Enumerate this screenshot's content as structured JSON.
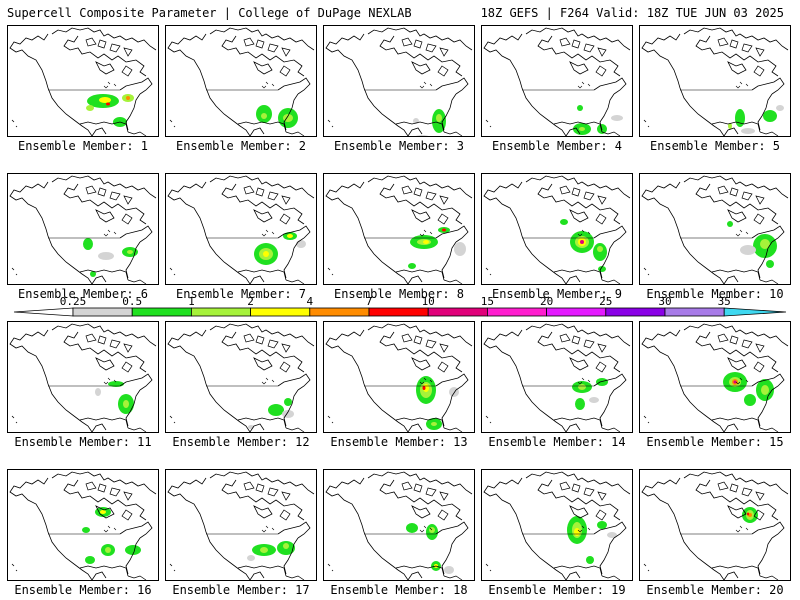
{
  "header": {
    "left": "Supercell Composite Parameter | College of DuPage NEXLAB",
    "right": "18Z GEFS | F264 Valid: 18Z TUE JUN 03 2025"
  },
  "panel_label_prefix": "Ensemble Member: ",
  "members": [
    {
      "id": "1",
      "blobs": [
        {
          "cx": 95,
          "cy": 75,
          "rx": 16,
          "ry": 7,
          "level": "0.5"
        },
        {
          "cx": 97,
          "cy": 74,
          "rx": 6,
          "ry": 3,
          "level": "2"
        },
        {
          "cx": 120,
          "cy": 72,
          "rx": 6,
          "ry": 4,
          "level": "1"
        },
        {
          "cx": 120,
          "cy": 72,
          "rx": 2,
          "ry": 2,
          "level": "4"
        },
        {
          "cx": 82,
          "cy": 82,
          "rx": 4,
          "ry": 3,
          "level": "1"
        },
        {
          "cx": 112,
          "cy": 96,
          "rx": 7,
          "ry": 5,
          "level": "0.5"
        },
        {
          "cx": 100,
          "cy": 78,
          "rx": 2,
          "ry": 1.5,
          "level": "7"
        }
      ]
    },
    {
      "id": "2",
      "blobs": [
        {
          "cx": 122,
          "cy": 92,
          "rx": 10,
          "ry": 10,
          "level": "0.5"
        },
        {
          "cx": 122,
          "cy": 92,
          "rx": 5,
          "ry": 4,
          "level": "1"
        },
        {
          "cx": 98,
          "cy": 88,
          "rx": 8,
          "ry": 9,
          "level": "0.5"
        },
        {
          "cx": 98,
          "cy": 90,
          "rx": 3,
          "ry": 3,
          "level": "1"
        },
        {
          "cx": 85,
          "cy": 122,
          "rx": 5,
          "ry": 3,
          "level": "0.25"
        }
      ]
    },
    {
      "id": "3",
      "blobs": [
        {
          "cx": 115,
          "cy": 95,
          "rx": 7,
          "ry": 12,
          "level": "0.5"
        },
        {
          "cx": 115,
          "cy": 92,
          "rx": 3,
          "ry": 4,
          "level": "1"
        },
        {
          "cx": 98,
          "cy": 115,
          "rx": 12,
          "ry": 6,
          "level": "0.25"
        },
        {
          "cx": 92,
          "cy": 95,
          "rx": 3,
          "ry": 3,
          "level": "0.25"
        }
      ]
    },
    {
      "id": "4",
      "blobs": [
        {
          "cx": 100,
          "cy": 103,
          "rx": 9,
          "ry": 6,
          "level": "0.5"
        },
        {
          "cx": 100,
          "cy": 103,
          "rx": 3,
          "ry": 2,
          "level": "1"
        },
        {
          "cx": 120,
          "cy": 103,
          "rx": 5,
          "ry": 5,
          "level": "0.5"
        },
        {
          "cx": 135,
          "cy": 92,
          "rx": 6,
          "ry": 3,
          "level": "0.25"
        },
        {
          "cx": 98,
          "cy": 82,
          "rx": 3,
          "ry": 3,
          "level": "0.5"
        }
      ]
    },
    {
      "id": "5",
      "blobs": [
        {
          "cx": 100,
          "cy": 92,
          "rx": 5,
          "ry": 9,
          "level": "0.5"
        },
        {
          "cx": 130,
          "cy": 90,
          "rx": 7,
          "ry": 6,
          "level": "0.5"
        },
        {
          "cx": 90,
          "cy": 100,
          "rx": 2,
          "ry": 3,
          "level": "1"
        },
        {
          "cx": 108,
          "cy": 105,
          "rx": 7,
          "ry": 3,
          "level": "0.25"
        },
        {
          "cx": 140,
          "cy": 82,
          "rx": 4,
          "ry": 3,
          "level": "0.25"
        }
      ]
    },
    {
      "id": "6",
      "blobs": [
        {
          "cx": 80,
          "cy": 70,
          "rx": 5,
          "ry": 6,
          "level": "0.5"
        },
        {
          "cx": 122,
          "cy": 78,
          "rx": 8,
          "ry": 5,
          "level": "0.5"
        },
        {
          "cx": 122,
          "cy": 78,
          "rx": 3,
          "ry": 2,
          "level": "1"
        },
        {
          "cx": 98,
          "cy": 82,
          "rx": 8,
          "ry": 4,
          "level": "0.25"
        },
        {
          "cx": 85,
          "cy": 100,
          "rx": 3,
          "ry": 3,
          "level": "0.5"
        }
      ]
    },
    {
      "id": "7",
      "blobs": [
        {
          "cx": 100,
          "cy": 80,
          "rx": 12,
          "ry": 11,
          "level": "0.5"
        },
        {
          "cx": 100,
          "cy": 80,
          "rx": 7,
          "ry": 6,
          "level": "1"
        },
        {
          "cx": 100,
          "cy": 80,
          "rx": 3,
          "ry": 3,
          "level": "2"
        },
        {
          "cx": 124,
          "cy": 62,
          "rx": 7,
          "ry": 4,
          "level": "0.5"
        },
        {
          "cx": 124,
          "cy": 62,
          "rx": 3,
          "ry": 2,
          "level": "2"
        },
        {
          "cx": 135,
          "cy": 70,
          "rx": 5,
          "ry": 4,
          "level": "0.25"
        }
      ]
    },
    {
      "id": "8",
      "blobs": [
        {
          "cx": 100,
          "cy": 68,
          "rx": 14,
          "ry": 7,
          "level": "0.5"
        },
        {
          "cx": 100,
          "cy": 68,
          "rx": 7,
          "ry": 3,
          "level": "1"
        },
        {
          "cx": 102,
          "cy": 68,
          "rx": 3,
          "ry": 2,
          "level": "2"
        },
        {
          "cx": 120,
          "cy": 56,
          "rx": 6,
          "ry": 3,
          "level": "0.5"
        },
        {
          "cx": 120,
          "cy": 56,
          "rx": 2,
          "ry": 1.5,
          "level": "7"
        },
        {
          "cx": 88,
          "cy": 92,
          "rx": 4,
          "ry": 3,
          "level": "0.5"
        },
        {
          "cx": 136,
          "cy": 75,
          "rx": 6,
          "ry": 7,
          "level": "0.25"
        }
      ]
    },
    {
      "id": "9",
      "blobs": [
        {
          "cx": 100,
          "cy": 68,
          "rx": 12,
          "ry": 11,
          "level": "0.5"
        },
        {
          "cx": 100,
          "cy": 68,
          "rx": 7,
          "ry": 6,
          "level": "1"
        },
        {
          "cx": 100,
          "cy": 68,
          "rx": 4,
          "ry": 4,
          "level": "2"
        },
        {
          "cx": 100,
          "cy": 68,
          "rx": 2,
          "ry": 2,
          "level": "10"
        },
        {
          "cx": 118,
          "cy": 78,
          "rx": 7,
          "ry": 9,
          "level": "0.5"
        },
        {
          "cx": 118,
          "cy": 75,
          "rx": 3,
          "ry": 3,
          "level": "1"
        },
        {
          "cx": 82,
          "cy": 48,
          "rx": 4,
          "ry": 3,
          "level": "0.5"
        },
        {
          "cx": 120,
          "cy": 95,
          "rx": 4,
          "ry": 3,
          "level": "0.5"
        }
      ]
    },
    {
      "id": "10",
      "blobs": [
        {
          "cx": 125,
          "cy": 72,
          "rx": 12,
          "ry": 12,
          "level": "0.5"
        },
        {
          "cx": 125,
          "cy": 70,
          "rx": 5,
          "ry": 5,
          "level": "1"
        },
        {
          "cx": 108,
          "cy": 76,
          "rx": 8,
          "ry": 5,
          "level": "0.25"
        },
        {
          "cx": 90,
          "cy": 50,
          "rx": 3,
          "ry": 3,
          "level": "0.5"
        },
        {
          "cx": 130,
          "cy": 90,
          "rx": 4,
          "ry": 4,
          "level": "0.5"
        }
      ]
    },
    {
      "id": "11",
      "blobs": [
        {
          "cx": 118,
          "cy": 82,
          "rx": 8,
          "ry": 10,
          "level": "0.5"
        },
        {
          "cx": 118,
          "cy": 82,
          "rx": 3,
          "ry": 4,
          "level": "1"
        },
        {
          "cx": 108,
          "cy": 62,
          "rx": 8,
          "ry": 3,
          "level": "0.5"
        },
        {
          "cx": 90,
          "cy": 70,
          "rx": 3,
          "ry": 4,
          "level": "0.25"
        }
      ]
    },
    {
      "id": "12",
      "blobs": [
        {
          "cx": 110,
          "cy": 88,
          "rx": 8,
          "ry": 6,
          "level": "0.5"
        },
        {
          "cx": 122,
          "cy": 80,
          "rx": 4,
          "ry": 4,
          "level": "0.5"
        },
        {
          "cx": 122,
          "cy": 92,
          "rx": 6,
          "ry": 4,
          "level": "0.25"
        },
        {
          "cx": 85,
          "cy": 105,
          "rx": 3,
          "ry": 2,
          "level": "0.25"
        }
      ]
    },
    {
      "id": "13",
      "blobs": [
        {
          "cx": 102,
          "cy": 68,
          "rx": 10,
          "ry": 14,
          "level": "0.5"
        },
        {
          "cx": 102,
          "cy": 68,
          "rx": 6,
          "ry": 8,
          "level": "1"
        },
        {
          "cx": 102,
          "cy": 66,
          "rx": 3,
          "ry": 4,
          "level": "2"
        },
        {
          "cx": 100,
          "cy": 66,
          "rx": 1.5,
          "ry": 2,
          "level": "7"
        },
        {
          "cx": 130,
          "cy": 70,
          "rx": 5,
          "ry": 5,
          "level": "0.25"
        },
        {
          "cx": 110,
          "cy": 102,
          "rx": 8,
          "ry": 6,
          "level": "0.5"
        },
        {
          "cx": 110,
          "cy": 102,
          "rx": 3,
          "ry": 2,
          "level": "1"
        }
      ]
    },
    {
      "id": "14",
      "blobs": [
        {
          "cx": 100,
          "cy": 65,
          "rx": 10,
          "ry": 6,
          "level": "0.5"
        },
        {
          "cx": 100,
          "cy": 65,
          "rx": 4,
          "ry": 3,
          "level": "1"
        },
        {
          "cx": 98,
          "cy": 82,
          "rx": 5,
          "ry": 6,
          "level": "0.5"
        },
        {
          "cx": 120,
          "cy": 60,
          "rx": 6,
          "ry": 4,
          "level": "0.5"
        },
        {
          "cx": 112,
          "cy": 78,
          "rx": 5,
          "ry": 3,
          "level": "0.25"
        }
      ]
    },
    {
      "id": "15",
      "blobs": [
        {
          "cx": 95,
          "cy": 60,
          "rx": 12,
          "ry": 10,
          "level": "0.5"
        },
        {
          "cx": 95,
          "cy": 60,
          "rx": 6,
          "ry": 5,
          "level": "1"
        },
        {
          "cx": 95,
          "cy": 60,
          "rx": 3,
          "ry": 3,
          "level": "4"
        },
        {
          "cx": 95,
          "cy": 60,
          "rx": 1.5,
          "ry": 1.5,
          "level": "10"
        },
        {
          "cx": 125,
          "cy": 68,
          "rx": 9,
          "ry": 11,
          "level": "0.5"
        },
        {
          "cx": 125,
          "cy": 68,
          "rx": 4,
          "ry": 5,
          "level": "1"
        },
        {
          "cx": 110,
          "cy": 78,
          "rx": 6,
          "ry": 6,
          "level": "0.5"
        }
      ]
    },
    {
      "id": "16",
      "blobs": [
        {
          "cx": 95,
          "cy": 42,
          "rx": 8,
          "ry": 5,
          "level": "0.5"
        },
        {
          "cx": 95,
          "cy": 42,
          "rx": 3,
          "ry": 2,
          "level": "2"
        },
        {
          "cx": 78,
          "cy": 60,
          "rx": 4,
          "ry": 3,
          "level": "0.5"
        },
        {
          "cx": 100,
          "cy": 80,
          "rx": 7,
          "ry": 6,
          "level": "0.5"
        },
        {
          "cx": 100,
          "cy": 80,
          "rx": 3,
          "ry": 3,
          "level": "1"
        },
        {
          "cx": 125,
          "cy": 80,
          "rx": 8,
          "ry": 5,
          "level": "0.5"
        },
        {
          "cx": 82,
          "cy": 90,
          "rx": 5,
          "ry": 4,
          "level": "0.5"
        }
      ]
    },
    {
      "id": "17",
      "blobs": [
        {
          "cx": 98,
          "cy": 80,
          "rx": 12,
          "ry": 6,
          "level": "0.5"
        },
        {
          "cx": 98,
          "cy": 80,
          "rx": 4,
          "ry": 3,
          "level": "1"
        },
        {
          "cx": 120,
          "cy": 78,
          "rx": 9,
          "ry": 7,
          "level": "0.5"
        },
        {
          "cx": 120,
          "cy": 76,
          "rx": 3,
          "ry": 3,
          "level": "1"
        },
        {
          "cx": 85,
          "cy": 88,
          "rx": 4,
          "ry": 3,
          "level": "0.25"
        }
      ]
    },
    {
      "id": "18",
      "blobs": [
        {
          "cx": 88,
          "cy": 58,
          "rx": 6,
          "ry": 5,
          "level": "0.5"
        },
        {
          "cx": 108,
          "cy": 62,
          "rx": 6,
          "ry": 8,
          "level": "0.5"
        },
        {
          "cx": 108,
          "cy": 60,
          "rx": 3,
          "ry": 3,
          "level": "1"
        },
        {
          "cx": 112,
          "cy": 96,
          "rx": 5,
          "ry": 5,
          "level": "0.5"
        },
        {
          "cx": 112,
          "cy": 96,
          "rx": 2,
          "ry": 2,
          "level": "2"
        },
        {
          "cx": 125,
          "cy": 100,
          "rx": 5,
          "ry": 4,
          "level": "0.25"
        }
      ]
    },
    {
      "id": "19",
      "blobs": [
        {
          "cx": 95,
          "cy": 60,
          "rx": 10,
          "ry": 14,
          "level": "0.5"
        },
        {
          "cx": 95,
          "cy": 60,
          "rx": 5,
          "ry": 8,
          "level": "1"
        },
        {
          "cx": 95,
          "cy": 62,
          "rx": 3,
          "ry": 4,
          "level": "2"
        },
        {
          "cx": 120,
          "cy": 55,
          "rx": 5,
          "ry": 4,
          "level": "0.5"
        },
        {
          "cx": 130,
          "cy": 65,
          "rx": 5,
          "ry": 3,
          "level": "0.25"
        },
        {
          "cx": 108,
          "cy": 90,
          "rx": 4,
          "ry": 4,
          "level": "0.5"
        }
      ]
    },
    {
      "id": "20",
      "blobs": [
        {
          "cx": 110,
          "cy": 45,
          "rx": 8,
          "ry": 8,
          "level": "0.5"
        },
        {
          "cx": 110,
          "cy": 45,
          "rx": 4,
          "ry": 5,
          "level": "1"
        },
        {
          "cx": 110,
          "cy": 45,
          "rx": 2,
          "ry": 2,
          "level": "4"
        },
        {
          "cx": 108,
          "cy": 44,
          "rx": 1,
          "ry": 1.5,
          "level": "7"
        }
      ]
    }
  ],
  "colorbar": {
    "levels": [
      {
        "label": "0.25",
        "color": "#d4d4d4"
      },
      {
        "label": "0.5",
        "color": "#20e020"
      },
      {
        "label": "1",
        "color": "#a6f23a"
      },
      {
        "label": "2",
        "color": "#ffff00"
      },
      {
        "label": "4",
        "color": "#ff8c00"
      },
      {
        "label": "7",
        "color": "#ff0000"
      },
      {
        "label": "10",
        "color": "#e0007a"
      },
      {
        "label": "15",
        "color": "#ff1ecf"
      },
      {
        "label": "20",
        "color": "#e419ff"
      },
      {
        "label": "25",
        "color": "#8a00e6"
      },
      {
        "label": "30",
        "color": "#a87be8"
      },
      {
        "label": "35",
        "color": "#3fd8f0"
      }
    ],
    "left_arrow_color": "#ffffff"
  }
}
